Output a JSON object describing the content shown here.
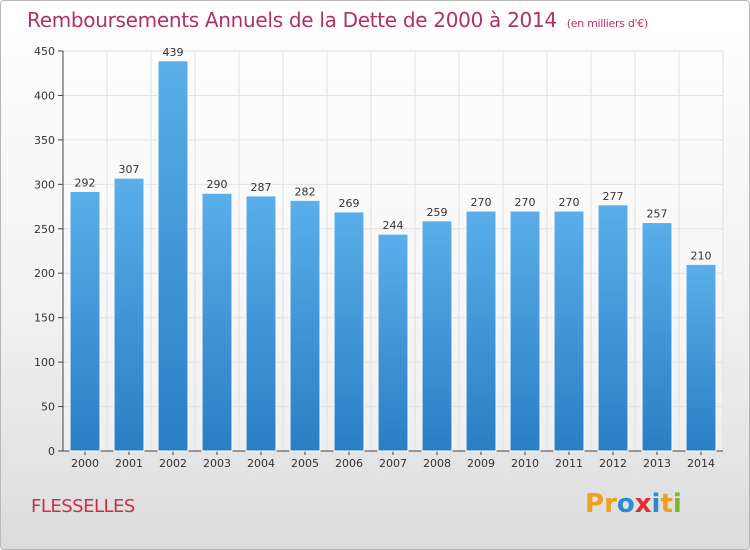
{
  "header": {
    "title": "Remboursements Annuels de la Dette de 2000 à 2014",
    "unit": "(en milliers d'€)"
  },
  "footer": {
    "commune": "FLESSELLES",
    "logo": "Proxiti",
    "logo_letters": [
      "P",
      "r",
      "o",
      "x",
      "i",
      "t",
      "i"
    ],
    "logo_colors": [
      "#f0a020",
      "#f0a020",
      "#2a8ad6",
      "#e03030",
      "#2a8ad6",
      "#f0a020",
      "#7ab830"
    ]
  },
  "colors": {
    "title": "#b0306a",
    "bar_top": "#5aaeea",
    "bar_bottom": "#2a7ec4",
    "grid": "#e0e0e0"
  },
  "chart_data": {
    "type": "bar",
    "title": "Remboursements Annuels de la Dette de 2000 à 2014",
    "subtitle": "(en milliers d'€)",
    "categories": [
      "2000",
      "2001",
      "2002",
      "2003",
      "2004",
      "2005",
      "2006",
      "2007",
      "2008",
      "2009",
      "2010",
      "2011",
      "2012",
      "2013",
      "2014"
    ],
    "values": [
      292,
      307,
      439,
      290,
      287,
      282,
      269,
      244,
      259,
      270,
      270,
      270,
      277,
      257,
      210
    ],
    "ylim": [
      0,
      450
    ],
    "yticks": [
      0,
      50,
      100,
      150,
      200,
      250,
      300,
      350,
      400,
      450
    ],
    "grid": true,
    "data_labels": true
  }
}
